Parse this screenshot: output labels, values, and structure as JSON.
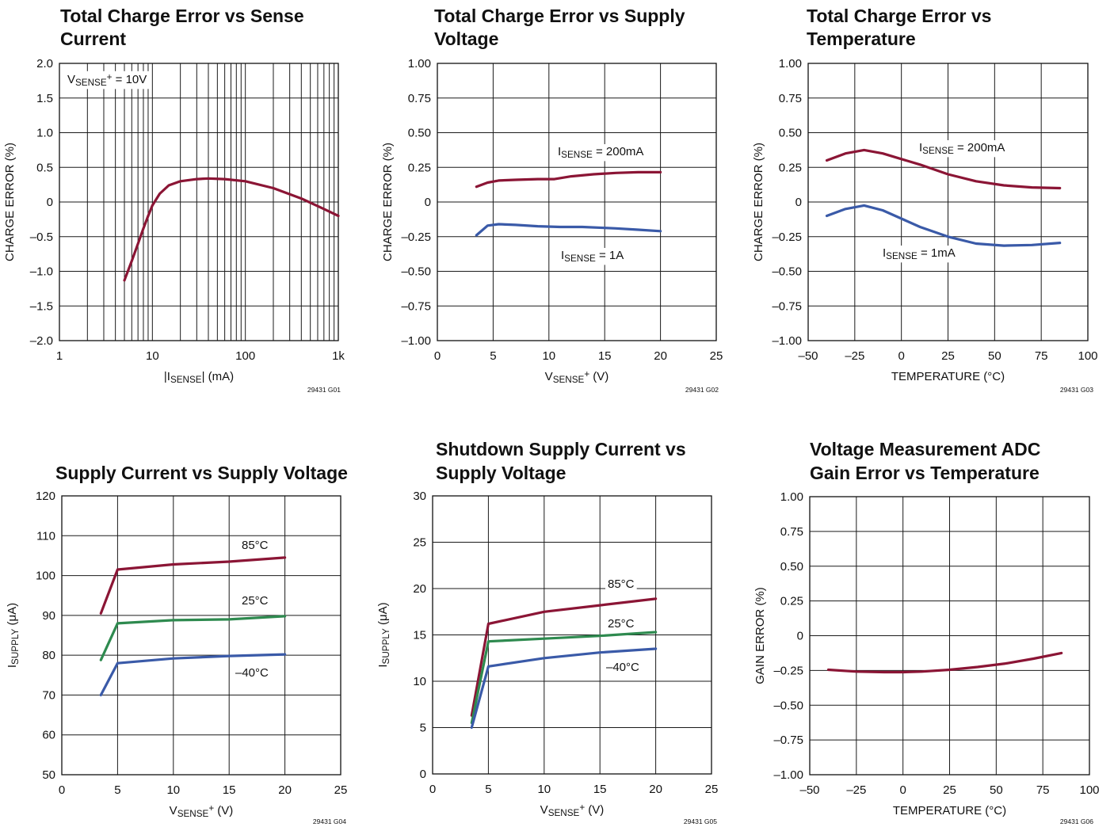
{
  "chart_data": [
    {
      "type": "line",
      "title_lines": [
        "Total Charge Error vs Sense",
        "Current"
      ],
      "xlabel": "|ISENSE| (mA)",
      "ylabel": "CHARGE ERROR (%)",
      "xscale": "log",
      "xlim": [
        1,
        1000
      ],
      "ylim": [
        -2.0,
        2.0
      ],
      "x_ticks": [
        "1",
        "10",
        "100",
        "1k"
      ],
      "y_ticks": [
        "2.0",
        "1.5",
        "1.0",
        "0.5",
        "0",
        "–0.5",
        "–1.0",
        "–1.5",
        "–2.0"
      ],
      "grid": true,
      "figure_code": "29431 G01",
      "annotations": [
        {
          "text": "VSENSE+ = 10V"
        }
      ],
      "series": [
        {
          "name": "",
          "color": "#8b1535",
          "x": [
            5,
            6,
            7,
            8,
            9,
            10,
            12,
            15,
            20,
            30,
            40,
            60,
            100,
            200,
            400,
            700,
            1000
          ],
          "y": [
            -1.13,
            -0.85,
            -0.6,
            -0.38,
            -0.2,
            -0.05,
            0.12,
            0.24,
            0.3,
            0.33,
            0.34,
            0.33,
            0.3,
            0.2,
            0.05,
            -0.1,
            -0.2
          ]
        }
      ]
    },
    {
      "type": "line",
      "title_lines": [
        "Total Charge Error vs Supply",
        "Voltage"
      ],
      "xlabel": "VSENSE+ (V)",
      "ylabel": "CHARGE ERROR (%)",
      "xlim": [
        0,
        25
      ],
      "ylim": [
        -1.0,
        1.0
      ],
      "x_ticks": [
        "0",
        "5",
        "10",
        "15",
        "20",
        "25"
      ],
      "y_ticks": [
        "1.00",
        "0.75",
        "0.50",
        "0.25",
        "0",
        "–0.25",
        "–0.50",
        "–0.75",
        "–1.00"
      ],
      "grid": true,
      "figure_code": "29431 G02",
      "series": [
        {
          "name": "ISENSE = 200mA",
          "color": "#8b1535",
          "x": [
            3.5,
            4.5,
            5.5,
            7,
            9,
            10.5,
            12,
            14,
            16,
            18,
            20
          ],
          "y": [
            0.11,
            0.14,
            0.155,
            0.16,
            0.165,
            0.165,
            0.185,
            0.2,
            0.21,
            0.215,
            0.215
          ]
        },
        {
          "name": "ISENSE = 1A",
          "color": "#3a5aa8",
          "x": [
            3.5,
            4.5,
            5.5,
            7,
            9,
            11,
            13,
            16,
            18,
            20
          ],
          "y": [
            -0.24,
            -0.17,
            -0.16,
            -0.165,
            -0.175,
            -0.18,
            -0.18,
            -0.19,
            -0.2,
            -0.21
          ]
        }
      ]
    },
    {
      "type": "line",
      "title_lines": [
        "Total Charge Error vs",
        "Temperature"
      ],
      "xlabel": "TEMPERATURE (°C)",
      "ylabel": "CHARGE ERROR (%)",
      "xlim": [
        -50,
        100
      ],
      "ylim": [
        -1.0,
        1.0
      ],
      "x_ticks": [
        "–50",
        "–25",
        "0",
        "25",
        "50",
        "75",
        "100"
      ],
      "y_ticks": [
        "1.00",
        "0.75",
        "0.50",
        "0.25",
        "0",
        "–0.25",
        "–0.50",
        "–0.75",
        "–1.00"
      ],
      "grid": true,
      "figure_code": "29431 G03",
      "series": [
        {
          "name": "ISENSE = 200mA",
          "color": "#8b1535",
          "x": [
            -40,
            -30,
            -20,
            -10,
            0,
            10,
            25,
            40,
            55,
            70,
            85
          ],
          "y": [
            0.3,
            0.35,
            0.375,
            0.35,
            0.31,
            0.27,
            0.2,
            0.15,
            0.12,
            0.105,
            0.1
          ]
        },
        {
          "name": "ISENSE = 1mA",
          "color": "#3a5aa8",
          "x": [
            -40,
            -30,
            -20,
            -10,
            0,
            10,
            25,
            40,
            55,
            70,
            85
          ],
          "y": [
            -0.1,
            -0.05,
            -0.025,
            -0.06,
            -0.12,
            -0.18,
            -0.25,
            -0.3,
            -0.315,
            -0.31,
            -0.295
          ]
        }
      ]
    },
    {
      "type": "line",
      "title_lines": [
        "Supply Current vs Supply Voltage"
      ],
      "xlabel": "VSENSE+ (V)",
      "ylabel": "ISUPPLY (μA)",
      "xlim": [
        0,
        25
      ],
      "ylim": [
        50,
        120
      ],
      "x_ticks": [
        "0",
        "5",
        "10",
        "15",
        "20",
        "25"
      ],
      "y_ticks": [
        "120",
        "110",
        "100",
        "90",
        "80",
        "70",
        "60",
        "50"
      ],
      "grid": true,
      "figure_code": "29431 G04",
      "series": [
        {
          "name": "85°C",
          "color": "#8b1535",
          "x": [
            3.5,
            5,
            10,
            15,
            20
          ],
          "y": [
            90.5,
            101.5,
            102.8,
            103.5,
            104.5
          ]
        },
        {
          "name": "25°C",
          "color": "#2e8a4f",
          "x": [
            3.5,
            5,
            10,
            15,
            20
          ],
          "y": [
            78.8,
            88,
            88.8,
            89,
            89.8
          ]
        },
        {
          "name": "–40°C",
          "color": "#3a5aa8",
          "x": [
            3.5,
            5,
            10,
            15,
            20
          ],
          "y": [
            70,
            78,
            79.2,
            79.8,
            80.2
          ]
        }
      ]
    },
    {
      "type": "line",
      "title_lines": [
        "Shutdown Supply Current vs",
        "Supply Voltage"
      ],
      "xlabel": "VSENSE+ (V)",
      "ylabel": "ISUPPLY (μA)",
      "xlim": [
        0,
        25
      ],
      "ylim": [
        0,
        30
      ],
      "x_ticks": [
        "0",
        "5",
        "10",
        "15",
        "20",
        "25"
      ],
      "y_ticks": [
        "30",
        "25",
        "20",
        "15",
        "10",
        "5",
        "0"
      ],
      "grid": true,
      "figure_code": "29431 G05",
      "series": [
        {
          "name": "85°C",
          "color": "#8b1535",
          "x": [
            3.5,
            5,
            10,
            15,
            20
          ],
          "y": [
            6.3,
            16.2,
            17.5,
            18.2,
            18.9
          ]
        },
        {
          "name": "25°C",
          "color": "#2e8a4f",
          "x": [
            3.5,
            5,
            10,
            15,
            20
          ],
          "y": [
            5.5,
            14.3,
            14.6,
            14.9,
            15.3
          ]
        },
        {
          "name": "–40°C",
          "color": "#3a5aa8",
          "x": [
            3.5,
            5,
            10,
            15,
            20
          ],
          "y": [
            5,
            11.6,
            12.5,
            13.1,
            13.5
          ]
        }
      ]
    },
    {
      "type": "line",
      "title_lines": [
        "Voltage Measurement ADC",
        "Gain Error vs Temperature"
      ],
      "xlabel": "TEMPERATURE (°C)",
      "ylabel": "GAIN ERROR (%)",
      "xlim": [
        -50,
        100
      ],
      "ylim": [
        -1.0,
        1.0
      ],
      "x_ticks": [
        "–50",
        "–25",
        "0",
        "25",
        "50",
        "75",
        "100"
      ],
      "y_ticks": [
        "1.00",
        "0.75",
        "0.50",
        "0.25",
        "0",
        "–0.25",
        "–0.50",
        "–0.75",
        "–1.00"
      ],
      "grid": true,
      "figure_code": "29431 G06",
      "series": [
        {
          "name": "",
          "color": "#8b1535",
          "x": [
            -40,
            -25,
            -10,
            0,
            10,
            25,
            40,
            55,
            70,
            85
          ],
          "y": [
            -0.245,
            -0.258,
            -0.262,
            -0.262,
            -0.258,
            -0.245,
            -0.225,
            -0.2,
            -0.165,
            -0.125
          ]
        }
      ]
    }
  ]
}
